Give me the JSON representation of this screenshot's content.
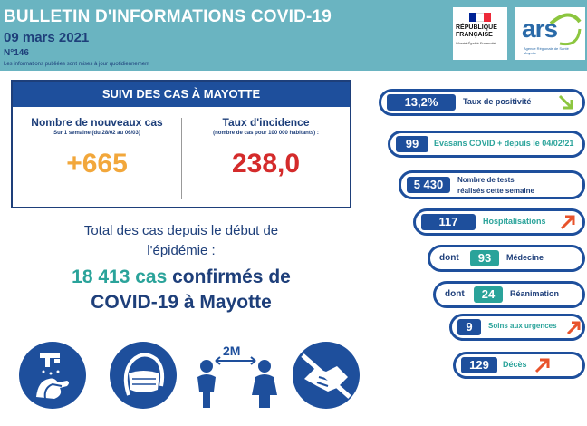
{
  "header": {
    "title": "BULLETIN D'INFORMATIONS COVID-19",
    "date": "09 mars 2021",
    "number": "N°146",
    "note": "Les informations publiées sont mises à jour quotidiennement",
    "republique_line1": "RÉPUBLIQUE",
    "republique_line2": "FRANÇAISE",
    "republique_motto": "Liberté Égalité Fraternité",
    "ars_word": "ars",
    "ars_sub": "Agence Régionale de Santé Mayotte",
    "flag_colors": [
      "#002395",
      "#ffffff",
      "#ed2939"
    ]
  },
  "suivi": {
    "heading": "SUIVI DES CAS À MAYOTTE",
    "new_cases_title": "Nombre de nouveaux cas",
    "new_cases_sub": "Sur 1 semaine (du 28/02 au 06/03)",
    "new_cases_value": "+665",
    "incidence_title": "Taux d'incidence",
    "incidence_sub": "(nombre de cas pour 100 000 habitants) :",
    "incidence_value": "238,0"
  },
  "total": {
    "line1": "Total des cas depuis le début de",
    "line2": "l'épidémie :",
    "cases_number": "18 413 cas",
    "cases_rest": " confirmés de",
    "line4": "COVID-19 à Mayotte"
  },
  "icons": [
    "handwashing-icon",
    "mask-icon",
    "distancing-icon",
    "no-handshake-icon"
  ],
  "distance_label": "2M",
  "indicators": {
    "positivity": {
      "value": "13,2%",
      "label": "Taux de positivité",
      "trend": "down"
    },
    "evasans": {
      "value": "99",
      "label": "Evasans COVID + depuis le 04/02/21"
    },
    "tests": {
      "value": "5 430",
      "label1": "Nombre de tests",
      "label2": "réalisés cette semaine"
    },
    "hospitalisations": {
      "value": "117",
      "label": "Hospitalisations",
      "trend": "up"
    },
    "medecine": {
      "prefix": "dont",
      "value": "93",
      "label": "Médecine"
    },
    "reanimation": {
      "prefix": "dont",
      "value": "24",
      "label": "Réanimation"
    },
    "urgences": {
      "value": "9",
      "label": "Soins aux urgences",
      "trend": "up"
    },
    "deces": {
      "value": "129",
      "label": "Décès",
      "trend": "up"
    }
  },
  "colors": {
    "header_bg": "#6ab4c1",
    "navy": "#1e3f7a",
    "blue": "#1e4f9c",
    "teal": "#2aa39a",
    "orange": "#f2a73b",
    "red": "#d42b2b",
    "arrow_up": "#e8532b",
    "arrow_down": "#8cc63f"
  }
}
